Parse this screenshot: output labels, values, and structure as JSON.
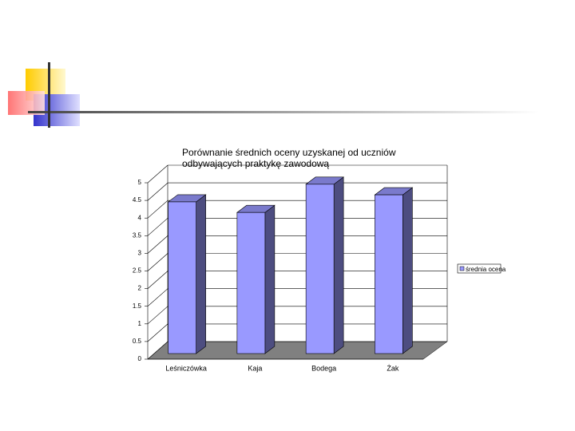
{
  "chart_data": {
    "type": "bar3d",
    "title": "Porównanie średnich oceny uzyskanej od uczniów odbywających praktykę zawodową",
    "categories": [
      "Leśniczówka",
      "Kaja",
      "Bodega",
      "Żak"
    ],
    "series": [
      {
        "name": "średnia ocena",
        "color": "#9999ff",
        "values": [
          4.3,
          4.0,
          4.8,
          4.5
        ]
      }
    ],
    "ylim": [
      0,
      5
    ],
    "yticks": [
      0,
      0.5,
      1,
      1.5,
      2,
      2.5,
      3,
      3.5,
      4,
      4.5,
      5
    ],
    "grid": true,
    "legend": "right"
  }
}
